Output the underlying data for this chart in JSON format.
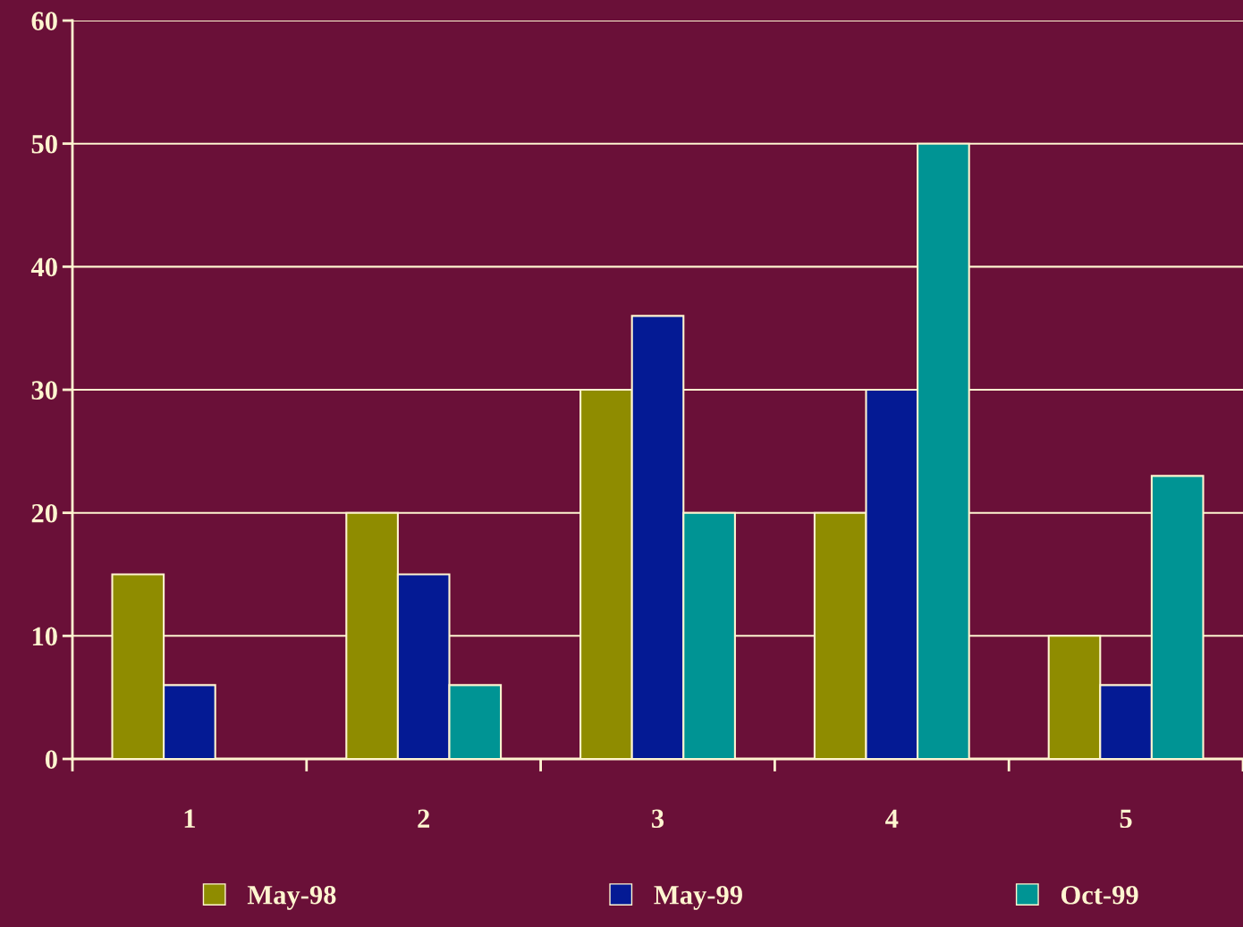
{
  "chart_data": {
    "type": "bar",
    "categories": [
      "1",
      "2",
      "3",
      "4",
      "5"
    ],
    "series": [
      {
        "name": "May-98",
        "color": "#8f8c00",
        "values": [
          15,
          20,
          30,
          20,
          10
        ]
      },
      {
        "name": "May-99",
        "color": "#041a94",
        "values": [
          6,
          15,
          36,
          30,
          6
        ]
      },
      {
        "name": "Oct-99",
        "color": "#009494",
        "values": [
          null,
          6,
          20,
          50,
          23
        ]
      }
    ],
    "ylim": [
      0,
      60
    ],
    "yticks": [
      0,
      10,
      20,
      30,
      40,
      50,
      60
    ],
    "grid": "y",
    "legend": "bottom"
  }
}
